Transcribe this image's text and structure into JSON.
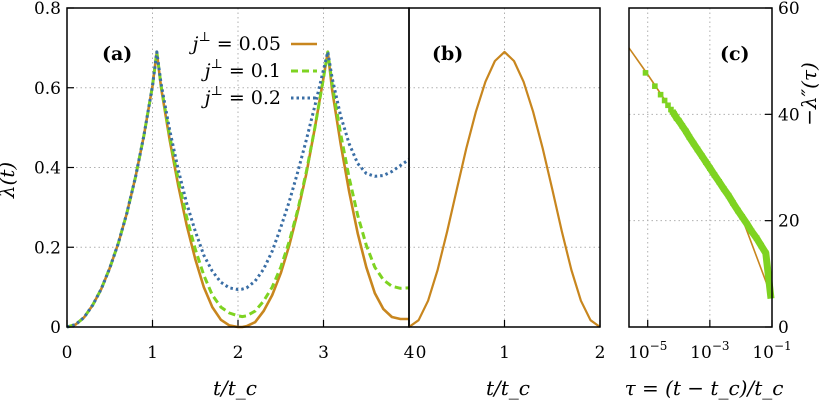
{
  "chart_data": [
    {
      "panel_label": "(a)",
      "type": "line",
      "xlabel": "t/t_c",
      "ylabel": "λ(t)",
      "xlim": [
        0,
        4
      ],
      "ylim": [
        0,
        0.8
      ],
      "xticks": [
        "0",
        "1",
        "2",
        "3",
        "4"
      ],
      "yticks": [
        "0",
        "0.2",
        "0.4",
        "0.6",
        "0.8"
      ],
      "grid": true,
      "legend_placement": "top-right",
      "series": [
        {
          "name": "j⊥ = 0.05",
          "legend_name": "j",
          "legend_sup": "⊥",
          "legend_value": " = 0.05",
          "color": "#C8861E",
          "style": "solid",
          "x": [
            0,
            0.1,
            0.2,
            0.3,
            0.4,
            0.5,
            0.6,
            0.7,
            0.8,
            0.9,
            1.0,
            1.05,
            1.1,
            1.2,
            1.3,
            1.4,
            1.5,
            1.6,
            1.7,
            1.8,
            1.9,
            2.0,
            2.05,
            2.1,
            2.2,
            2.3,
            2.4,
            2.5,
            2.6,
            2.7,
            2.8,
            2.9,
            3.0,
            3.05,
            3.1,
            3.2,
            3.3,
            3.4,
            3.5,
            3.6,
            3.7,
            3.8,
            3.9,
            4.0
          ],
          "y": [
            0,
            0.006,
            0.024,
            0.055,
            0.095,
            0.148,
            0.21,
            0.285,
            0.375,
            0.48,
            0.605,
            0.69,
            0.6,
            0.47,
            0.355,
            0.255,
            0.17,
            0.1,
            0.05,
            0.018,
            0.004,
            0.0,
            0.0,
            0.002,
            0.012,
            0.04,
            0.08,
            0.135,
            0.205,
            0.29,
            0.385,
            0.5,
            0.625,
            0.69,
            0.595,
            0.46,
            0.34,
            0.235,
            0.15,
            0.085,
            0.045,
            0.025,
            0.02,
            0.02
          ]
        },
        {
          "name": "j⊥ = 0.1",
          "legend_name": "j",
          "legend_sup": "⊥",
          "legend_value": " = 0.1",
          "color": "#7ED321",
          "style": "dashed",
          "x": [
            0,
            0.1,
            0.2,
            0.3,
            0.4,
            0.5,
            0.6,
            0.7,
            0.8,
            0.9,
            1.0,
            1.05,
            1.1,
            1.2,
            1.3,
            1.4,
            1.5,
            1.6,
            1.7,
            1.8,
            1.9,
            2.0,
            2.05,
            2.1,
            2.2,
            2.3,
            2.4,
            2.5,
            2.6,
            2.7,
            2.8,
            2.9,
            3.0,
            3.05,
            3.1,
            3.2,
            3.3,
            3.4,
            3.5,
            3.6,
            3.7,
            3.8,
            3.9,
            4.0
          ],
          "y": [
            0,
            0.006,
            0.024,
            0.055,
            0.095,
            0.148,
            0.21,
            0.285,
            0.375,
            0.48,
            0.605,
            0.69,
            0.605,
            0.48,
            0.37,
            0.275,
            0.195,
            0.13,
            0.08,
            0.05,
            0.035,
            0.028,
            0.026,
            0.028,
            0.04,
            0.065,
            0.1,
            0.15,
            0.215,
            0.295,
            0.39,
            0.5,
            0.625,
            0.69,
            0.61,
            0.485,
            0.375,
            0.28,
            0.205,
            0.15,
            0.118,
            0.102,
            0.097,
            0.098
          ]
        },
        {
          "name": "j⊥ = 0.2",
          "legend_name": "j",
          "legend_sup": "⊥",
          "legend_value": " = 0.2",
          "color": "#3A6EA5",
          "style": "dotted",
          "x": [
            0,
            0.1,
            0.2,
            0.3,
            0.4,
            0.5,
            0.6,
            0.7,
            0.8,
            0.9,
            1.0,
            1.05,
            1.1,
            1.2,
            1.3,
            1.4,
            1.5,
            1.6,
            1.7,
            1.8,
            1.9,
            2.0,
            2.05,
            2.1,
            2.2,
            2.3,
            2.4,
            2.5,
            2.6,
            2.7,
            2.8,
            2.9,
            3.0,
            3.05,
            3.1,
            3.2,
            3.3,
            3.4,
            3.5,
            3.6,
            3.7,
            3.8,
            3.9,
            4.0
          ],
          "y": [
            0,
            0.006,
            0.024,
            0.055,
            0.095,
            0.148,
            0.21,
            0.285,
            0.375,
            0.48,
            0.605,
            0.69,
            0.61,
            0.495,
            0.395,
            0.31,
            0.24,
            0.18,
            0.14,
            0.112,
            0.098,
            0.094,
            0.095,
            0.098,
            0.115,
            0.145,
            0.19,
            0.25,
            0.315,
            0.39,
            0.47,
            0.555,
            0.645,
            0.69,
            0.625,
            0.53,
            0.46,
            0.41,
            0.385,
            0.378,
            0.38,
            0.39,
            0.405,
            0.42
          ]
        }
      ]
    },
    {
      "panel_label": "(b)",
      "type": "line",
      "xlabel": "t/t_c",
      "xlim": [
        0,
        2
      ],
      "ylim": [
        0,
        0.8
      ],
      "xticks": [
        "0",
        "1",
        "2"
      ],
      "grid": true,
      "series": [
        {
          "color": "#C8861E",
          "style": "solid",
          "x": [
            0,
            0.1,
            0.2,
            0.3,
            0.4,
            0.5,
            0.6,
            0.7,
            0.8,
            0.9,
            1.0,
            1.1,
            1.2,
            1.3,
            1.4,
            1.5,
            1.6,
            1.7,
            1.8,
            1.9,
            2.0
          ],
          "y": [
            0,
            0.017,
            0.066,
            0.143,
            0.24,
            0.345,
            0.448,
            0.54,
            0.615,
            0.667,
            0.69,
            0.667,
            0.615,
            0.54,
            0.448,
            0.345,
            0.24,
            0.143,
            0.066,
            0.017,
            0
          ]
        }
      ]
    },
    {
      "panel_label": "(c)",
      "type": "line",
      "xlabel": "τ = (t − t_c)/t_c",
      "ylabel": "−λ″(τ)",
      "x_scale": "log",
      "xlim": [
        2.5e-06,
        0.1
      ],
      "ylim": [
        0,
        60
      ],
      "xticks_log": [
        1e-05,
        0.001,
        0.1
      ],
      "yticks": [
        "0",
        "20",
        "40",
        "60"
      ],
      "yaxis_side": "right",
      "grid": true,
      "series": [
        {
          "color": "#C8861E",
          "style": "solid",
          "x": [
            2.5e-06,
            1e-05,
            0.0001,
            0.001,
            0.01,
            0.1
          ],
          "y": [
            52.5,
            47.5,
            38.8,
            29.9,
            21.1,
            5.5
          ]
        },
        {
          "color": "#7ED321",
          "style": "markers",
          "x": [
            8.5e-06,
            1.7e-05,
            2.6e-05,
            3.5e-05,
            4.5e-05,
            5.6e-05,
            7e-05,
            8.5e-05,
            0.0001,
            0.00013,
            0.00017,
            0.00022,
            0.0003,
            0.0004,
            0.00055,
            0.00075,
            0.001,
            0.0014,
            0.002,
            0.0028,
            0.004,
            0.0056,
            0.008,
            0.011,
            0.016,
            0.022,
            0.032,
            0.045,
            0.063,
            0.09
          ],
          "y": [
            47.8,
            45.3,
            43.7,
            42.6,
            41.7,
            40.9,
            40.1,
            39.3,
            38.8,
            37.8,
            36.8,
            35.7,
            34.5,
            33.4,
            32.2,
            31.0,
            29.9,
            28.6,
            27.3,
            26.0,
            24.7,
            23.3,
            21.9,
            20.7,
            19.3,
            18.0,
            16.7,
            15.3,
            13.9,
            6.0
          ]
        }
      ]
    }
  ]
}
